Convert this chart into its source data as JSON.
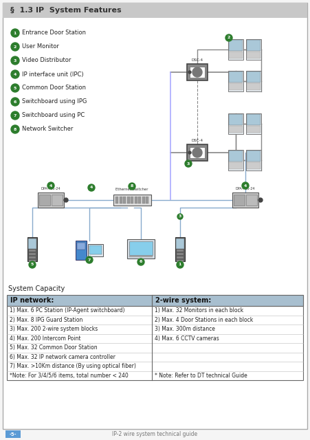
{
  "title": "§  1.3 IP  System Features",
  "title_bg": "#c8c8c8",
  "page_bg": "#f5f5f5",
  "inner_bg": "#ffffff",
  "border_color": "#888888",
  "legend_items": [
    {
      "num": "1",
      "text": "Entrance Door Station"
    },
    {
      "num": "2",
      "text": "User Monitor"
    },
    {
      "num": "3",
      "text": "Video Distributor"
    },
    {
      "num": "4",
      "text": "IP interface unit (IPC)"
    },
    {
      "num": "5",
      "text": "Common Door Station"
    },
    {
      "num": "6",
      "text": "Switchboard using IPG"
    },
    {
      "num": "7",
      "text": "Switchboard using PC"
    },
    {
      "num": "8",
      "text": "Network Switcher"
    }
  ],
  "circle_color": "#2d7d2d",
  "circle_text_color": "#ffffff",
  "table_header_bg": "#a8bfcf",
  "table_border": "#666666",
  "ip_col_header": "IP network:",
  "wire_col_header": "2-wire system:",
  "ip_rows": [
    "1) Max. 6 PC Station (IP-Agent switchboard)",
    "2) Max. 8 IPG Guard Station",
    "3) Max. 200 2-wire system blocks",
    "4) Max. 200 Intercom Point",
    "5) Max. 32 Common Door Station",
    "6) Max. 32 IP network camera controller",
    "7) Max. >10Km distance (By using optical fiber)",
    "*Note: For 3/4/5/6 items, total number < 240"
  ],
  "wire_rows": [
    "1) Max. 32 Monitors in each block",
    "2) Max. 4 Door Stations in each block",
    "3) Max. 300m distance",
    "4) Max. 6 CCTV cameras",
    "",
    "",
    "",
    "* Note: Refer to DT technical Guide"
  ],
  "system_capacity_label": "System Capacity",
  "footer_page": "-5-",
  "footer_text": "IP-2 wire system technical guide",
  "footer_bg": "#5b9bd5",
  "footer_text_color": "#777777",
  "line_color": "#888888",
  "dsc_color": "#888888",
  "monitor_bg": "#e8eef2",
  "monitor_screen": "#aac8d8",
  "door_bg": "#555555",
  "door_screen": "#aac8d8"
}
